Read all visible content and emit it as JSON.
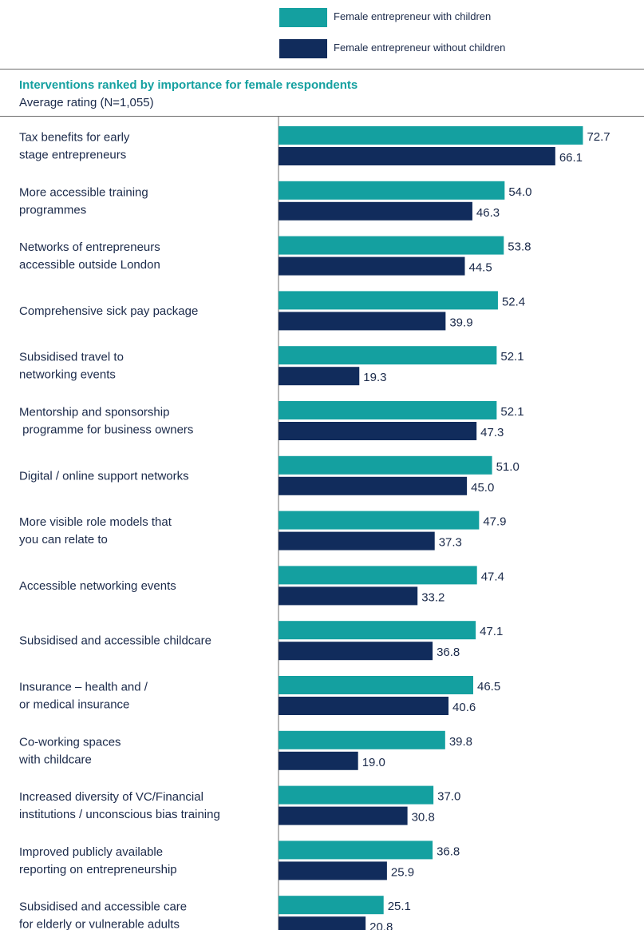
{
  "legend": {
    "with_children": "Female entrepreneur with children",
    "without_children": "Female entrepreneur without children"
  },
  "title": "Interventions ranked by importance for female respondents",
  "subtitle": "Average rating (N=1,055)",
  "colors": {
    "with_children": "#14a0a0",
    "without_children": "#112c5c",
    "text": "#1b2a4a",
    "title": "#14a0a0"
  },
  "chart_data": {
    "type": "bar",
    "orientation": "horizontal",
    "title": "Interventions ranked by importance for female respondents",
    "subtitle": "Average rating (N=1,055)",
    "categories": [
      [
        "Tax benefits for early",
        "stage entrepreneurs"
      ],
      [
        "More accessible training",
        "programmes"
      ],
      [
        "Networks of entrepreneurs",
        "accessible outside London"
      ],
      [
        "Comprehensive sick pay package"
      ],
      [
        "Subsidised travel to",
        "networking events"
      ],
      [
        "Mentorship and sponsorship",
        " programme for business owners"
      ],
      [
        "Digital / online support networks"
      ],
      [
        "More visible role models that",
        "you can relate to"
      ],
      [
        "Accessible networking events"
      ],
      [
        "Subsidised and accessible childcare"
      ],
      [
        "Insurance – health and /",
        "or medical insurance"
      ],
      [
        "Co-working spaces",
        "with childcare"
      ],
      [
        "Increased diversity of VC/Financial",
        "institutions / unconscious bias training"
      ],
      [
        "Improved publicly available",
        "reporting on entrepreneurship"
      ],
      [
        "Subsidised and accessible care",
        "for elderly or vulnerable adults"
      ]
    ],
    "series": [
      {
        "name": "Female entrepreneur with children",
        "values": [
          72.7,
          54.0,
          53.8,
          52.4,
          52.1,
          52.1,
          51.0,
          47.9,
          47.4,
          47.1,
          46.5,
          39.8,
          37.0,
          36.8,
          25.1
        ]
      },
      {
        "name": "Female entrepreneur without children",
        "values": [
          66.1,
          46.3,
          44.5,
          39.9,
          19.3,
          47.3,
          45.0,
          37.3,
          33.2,
          36.8,
          40.6,
          19.0,
          30.8,
          25.9,
          20.8
        ]
      }
    ],
    "xlim": [
      0,
      80
    ],
    "grid": false,
    "legend_position": "top"
  }
}
